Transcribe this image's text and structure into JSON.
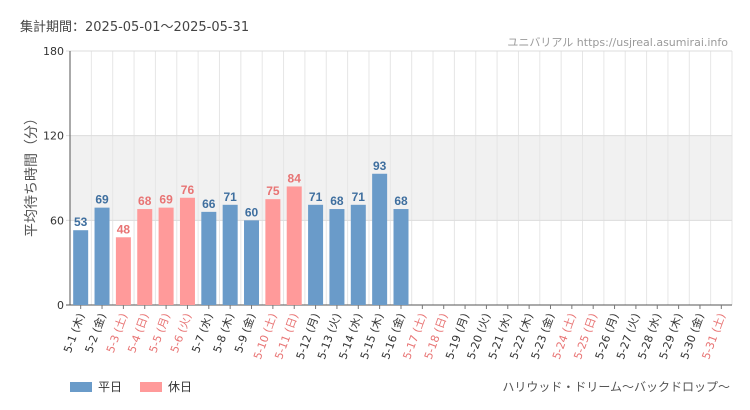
{
  "header": {
    "period": "集計期間：2025-05-01〜2025-05-31",
    "watermark": "ユニバリアル  https://usjreal.asumirai.info"
  },
  "footer": {
    "attraction": "ハリウッド・ドリーム〜バックドロップ〜"
  },
  "legend": [
    {
      "label": "平日",
      "color": "#6a9bc9"
    },
    {
      "label": "休日",
      "color": "#ff9a9a"
    }
  ],
  "colors": {
    "weekday": "#6a9bc9",
    "holiday": "#ff9a9a",
    "weekday_label": "#3f6f9f",
    "holiday_label": "#e87474",
    "band": "#f1f1f1"
  },
  "chart_data": {
    "type": "bar",
    "ylabel": "平均待ち時間（分）",
    "ylim": [
      0,
      180
    ],
    "yticks": [
      0,
      60,
      120,
      180
    ],
    "shaded_band": [
      60,
      120
    ],
    "categories": [
      "5-1 (木)",
      "5-2 (金)",
      "5-3 (土)",
      "5-4 (日)",
      "5-5 (月)",
      "5-6 (火)",
      "5-7 (水)",
      "5-8 (木)",
      "5-9 (金)",
      "5-10 (土)",
      "5-11 (日)",
      "5-12 (月)",
      "5-13 (火)",
      "5-14 (水)",
      "5-15 (木)",
      "5-16 (金)",
      "5-17 (土)",
      "5-18 (日)",
      "5-19 (月)",
      "5-20 (火)",
      "5-21 (水)",
      "5-22 (木)",
      "5-23 (金)",
      "5-24 (土)",
      "5-25 (日)",
      "5-26 (月)",
      "5-27 (火)",
      "5-28 (水)",
      "5-29 (木)",
      "5-30 (金)",
      "5-31 (土)"
    ],
    "values": [
      53,
      69,
      48,
      68,
      69,
      76,
      66,
      71,
      60,
      75,
      84,
      71,
      68,
      71,
      93,
      68,
      null,
      null,
      null,
      null,
      null,
      null,
      null,
      null,
      null,
      null,
      null,
      null,
      null,
      null,
      null
    ],
    "holiday": [
      false,
      false,
      true,
      true,
      true,
      true,
      false,
      false,
      false,
      true,
      true,
      false,
      false,
      false,
      false,
      false,
      true,
      true,
      false,
      false,
      false,
      false,
      false,
      true,
      true,
      false,
      false,
      false,
      false,
      false,
      true
    ]
  }
}
